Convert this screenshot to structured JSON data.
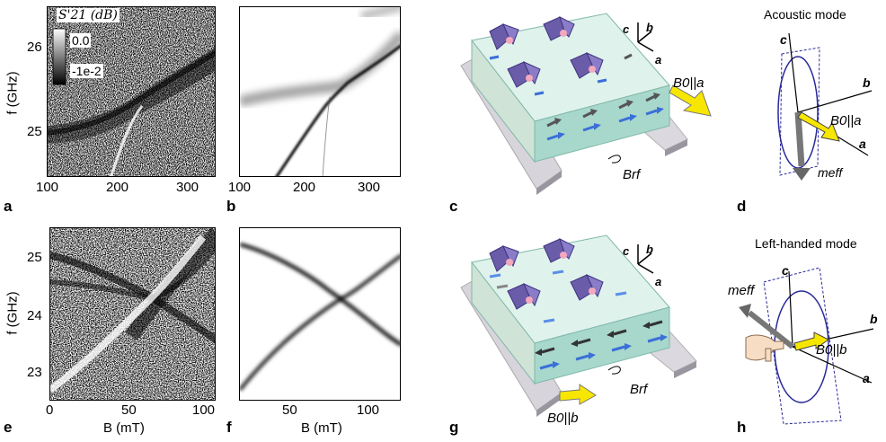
{
  "panels": {
    "a": {
      "label": "a"
    },
    "b": {
      "label": "b"
    },
    "c": {
      "label": "c"
    },
    "d": {
      "label": "d"
    },
    "e": {
      "label": "e"
    },
    "f": {
      "label": "f"
    },
    "g": {
      "label": "g"
    },
    "h": {
      "label": "h"
    }
  },
  "top": {
    "ylabel": "f (GHz)",
    "yticks": [
      "26",
      "25"
    ],
    "xticks": [
      "100",
      "200",
      "300"
    ],
    "xticks_b": [
      "100",
      "200",
      "300"
    ],
    "colorbar": {
      "title": "S'21 (dB)",
      "max_label": "0.0",
      "min_label": "-1e-2"
    }
  },
  "bottom": {
    "ylabel": "f (GHz)",
    "yticks": [
      "25",
      "24",
      "23"
    ],
    "xticks": [
      "0",
      "50",
      "100"
    ],
    "xticks_f": [
      "50",
      "100"
    ],
    "xlabel": "B (mT)",
    "xlabel_f": "B (mT)"
  },
  "diagram_c": {
    "axis_c": "c",
    "axis_b": "b",
    "axis_a": "a",
    "field": "B0||a",
    "rf": "Brf"
  },
  "diagram_g": {
    "axis_c": "c",
    "axis_b": "b",
    "axis_a": "a",
    "field": "B0||b",
    "rf": "Brf"
  },
  "diagram_d": {
    "title": "Acoustic mode",
    "axis_c": "c",
    "axis_b": "b",
    "axis_a": "a",
    "field": "B0||a",
    "moment": "meff"
  },
  "diagram_h": {
    "title": "Left-handed mode",
    "axis_c": "c",
    "axis_b": "b",
    "axis_a": "a",
    "field": "B0||b",
    "moment": "meff"
  },
  "chart_data": [
    {
      "type": "heatmap",
      "panel": "a",
      "xlabel": "",
      "ylabel": "f (GHz)",
      "xlim": [
        100,
        340
      ],
      "ylim": [
        24.5,
        26.5
      ],
      "xticks": [
        100,
        200,
        300
      ],
      "yticks": [
        25,
        26
      ],
      "colorbar": {
        "title": "S'21 (dB)",
        "range": [
          -0.01,
          0.0
        ]
      }
    },
    {
      "type": "heatmap",
      "panel": "b",
      "xlabel": "",
      "ylabel": "",
      "xlim": [
        100,
        340
      ],
      "ylim": [
        24.5,
        26.5
      ],
      "xticks": [
        100,
        200,
        300
      ]
    },
    {
      "type": "heatmap",
      "panel": "e",
      "xlabel": "B (mT)",
      "ylabel": "f (GHz)",
      "xlim": [
        0,
        100
      ],
      "ylim": [
        22.5,
        25.5
      ],
      "xticks": [
        0,
        50,
        100
      ],
      "yticks": [
        23,
        24,
        25
      ]
    },
    {
      "type": "heatmap",
      "panel": "f",
      "xlabel": "B (mT)",
      "ylabel": "",
      "xlim": [
        20,
        125
      ],
      "ylim": [
        22.5,
        25.5
      ],
      "xticks": [
        50,
        100
      ]
    }
  ]
}
